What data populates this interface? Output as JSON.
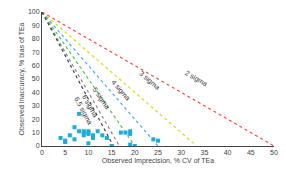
{
  "chart_data": {
    "type": "scatter",
    "xlabel": "Observed Imprecision, % CV of TEa",
    "ylabel": "Observed Inaccuracy, % bias of TEa",
    "xlim": [
      0,
      50
    ],
    "ylim": [
      0,
      100
    ],
    "xticks": [
      0,
      5,
      10,
      15,
      20,
      25,
      30,
      35,
      40,
      45,
      50
    ],
    "yticks": [
      0,
      10,
      20,
      30,
      40,
      50,
      60,
      70,
      80,
      90,
      100
    ],
    "grid": false,
    "series": [
      {
        "type": "line",
        "color": "#ff4444",
        "line_style": "dotted",
        "x": [
          0,
          50.0
        ],
        "values": [
          100,
          0
        ]
      },
      {
        "type": "line",
        "color": "#dddd00",
        "line_style": "dotted",
        "x": [
          0,
          33.33
        ],
        "values": [
          100,
          0
        ]
      },
      {
        "type": "line",
        "color": "#44aaff",
        "line_style": "dotted",
        "x": [
          0,
          25.0
        ],
        "values": [
          100,
          0
        ]
      },
      {
        "type": "line",
        "color": "#44cc44",
        "line_style": "dotted",
        "x": [
          0,
          20.0
        ],
        "values": [
          100,
          0
        ]
      },
      {
        "type": "line",
        "color": "#888888",
        "line_style": "dotted",
        "x": [
          0,
          16.67
        ],
        "values": [
          100,
          0
        ]
      },
      {
        "type": "line",
        "color": "#444444",
        "line_style": "dotted",
        "x": [
          0,
          15.38
        ],
        "values": [
          100,
          0
        ]
      },
      {
        "type": "scatter",
        "color": "#1aade4",
        "marker": "square",
        "x": [
          4,
          5,
          5,
          6,
          7,
          7,
          8,
          8,
          9,
          9,
          9,
          10,
          10,
          10,
          10,
          11,
          11,
          12,
          13,
          14,
          15,
          17,
          18,
          19,
          19,
          19,
          20,
          24,
          25
        ],
        "values": [
          6,
          4,
          3,
          8,
          14,
          5,
          24,
          11,
          11,
          10,
          8,
          11,
          10,
          9,
          2,
          8,
          6,
          11,
          8,
          6,
          0,
          10,
          10,
          11,
          9,
          1,
          0,
          5,
          4
        ]
      }
    ],
    "annotations": [
      {
        "text": "2 sigma",
        "x": 30,
        "y": 41,
        "line": 0
      },
      {
        "text": "3 sigma",
        "x": 20,
        "y": 38,
        "line": 1
      },
      {
        "text": "4 sigma",
        "x": 14,
        "y": 30,
        "line": 2
      },
      {
        "text": "5 sigma",
        "x": 10,
        "y": 24,
        "line": 3
      },
      {
        "text": "6 sigma",
        "x": 7.5,
        "y": 18,
        "line": 4
      },
      {
        "text": "6.5 sigma",
        "x": 6.0,
        "y": 13,
        "line": 5
      }
    ]
  }
}
